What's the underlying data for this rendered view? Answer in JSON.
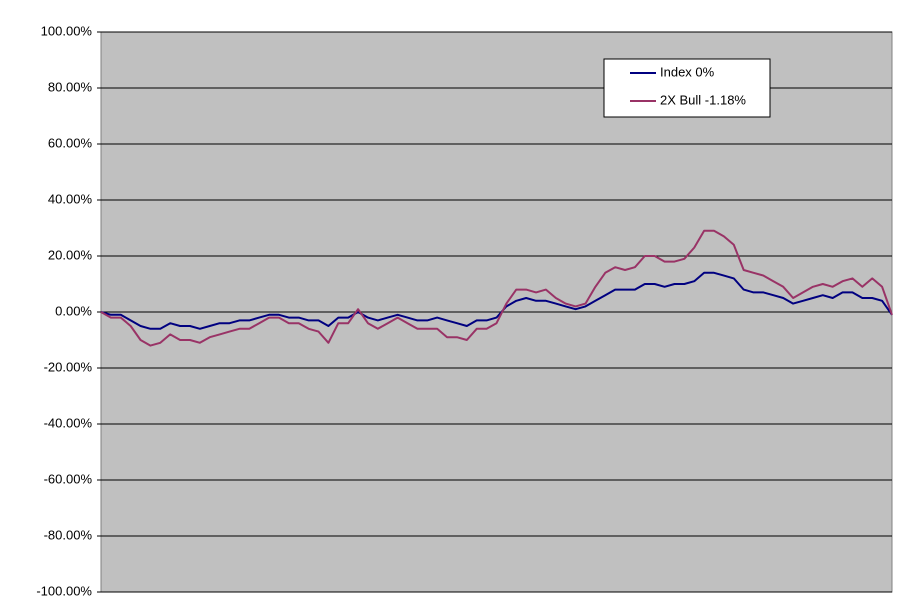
{
  "chart_data": {
    "type": "line",
    "categories": [
      null,
      null,
      null,
      null,
      null,
      null,
      null,
      null,
      null,
      null,
      null,
      null,
      null,
      null,
      null,
      null,
      null,
      null,
      null,
      null,
      null,
      null,
      null,
      null,
      null,
      null,
      null,
      null,
      null,
      null,
      null,
      null,
      null,
      null,
      null,
      null,
      null,
      null,
      null,
      null,
      null,
      null,
      null,
      null,
      null,
      null,
      null,
      null,
      null,
      null,
      null,
      null,
      null,
      null,
      null,
      null,
      null,
      null,
      null,
      null,
      null,
      null,
      null,
      null,
      null,
      null,
      null,
      null,
      null,
      null,
      null,
      null,
      null,
      null,
      null,
      null,
      null,
      null,
      null,
      null,
      null
    ],
    "series": [
      {
        "name": "Index 0%",
        "color": "#000080",
        "values": [
          0,
          -1,
          -1,
          -3,
          -5,
          -6,
          -6,
          -4,
          -5,
          -5,
          -6,
          -5,
          -4,
          -4,
          -3,
          -3,
          -2,
          -1,
          -1,
          -2,
          -2,
          -3,
          -3,
          -5,
          -2,
          -2,
          0,
          -2,
          -3,
          -2,
          -1,
          -2,
          -3,
          -3,
          -2,
          -3,
          -4,
          -5,
          -3,
          -3,
          -2,
          2,
          4,
          5,
          4,
          4,
          3,
          2,
          1,
          2,
          4,
          6,
          8,
          8,
          8,
          10,
          10,
          9,
          10,
          10,
          11,
          14,
          14,
          13,
          12,
          8,
          7,
          7,
          6,
          5,
          3,
          4,
          5,
          6,
          5,
          7,
          7,
          5,
          5,
          4,
          -1
        ]
      },
      {
        "name": "2X Bull  -1.18%",
        "color": "#993366",
        "values": [
          0,
          -2,
          -2,
          -5,
          -10,
          -12,
          -11,
          -8,
          -10,
          -10,
          -11,
          -9,
          -8,
          -7,
          -6,
          -6,
          -4,
          -2,
          -2,
          -4,
          -4,
          -6,
          -7,
          -11,
          -4,
          -4,
          1,
          -4,
          -6,
          -4,
          -2,
          -4,
          -6,
          -6,
          -6,
          -9,
          -9,
          -10,
          -6,
          -6,
          -4,
          3,
          8,
          8,
          7,
          8,
          5,
          3,
          2,
          3,
          9,
          14,
          16,
          15,
          16,
          20,
          20,
          18,
          18,
          19,
          23,
          29,
          29,
          27,
          24,
          15,
          14,
          13,
          11,
          9,
          5,
          7,
          9,
          10,
          9,
          11,
          12,
          9,
          12,
          9,
          -1
        ]
      }
    ],
    "ylim": [
      -100,
      100
    ],
    "yticks": [
      {
        "value": -100,
        "label": "-100.00%"
      },
      {
        "value": -80,
        "label": "-80.00%"
      },
      {
        "value": -60,
        "label": "-60.00%"
      },
      {
        "value": -40,
        "label": "-40.00%"
      },
      {
        "value": -20,
        "label": "-20.00%"
      },
      {
        "value": 0,
        "label": "0.00%"
      },
      {
        "value": 20,
        "label": "20.00%"
      },
      {
        "value": 40,
        "label": "40.00%"
      },
      {
        "value": 60,
        "label": "60.00%"
      },
      {
        "value": 80,
        "label": "80.00%"
      },
      {
        "value": 100,
        "label": "100.00%"
      }
    ],
    "grid": true,
    "legend": "top-right"
  }
}
